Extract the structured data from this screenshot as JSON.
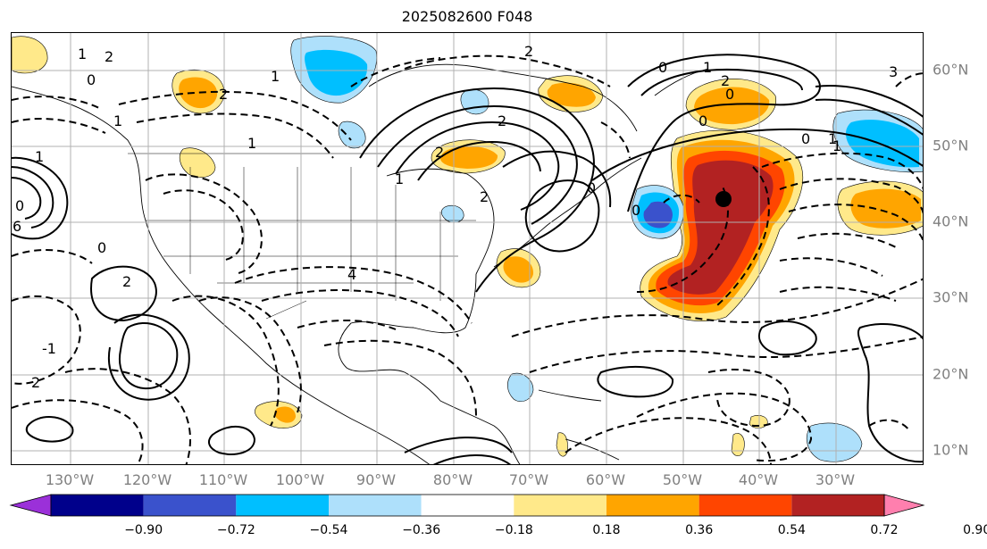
{
  "title": "2025082600 F048",
  "map": {
    "lon_labels": [
      "130°W",
      "120°W",
      "110°W",
      "100°W",
      "90°W",
      "80°W",
      "70°W",
      "60°W",
      "50°W",
      "40°W",
      "30°W"
    ],
    "lat_labels": [
      "60°N",
      "50°N",
      "40°N",
      "30°N",
      "20°N",
      "10°N"
    ],
    "gridlines": true,
    "marker": {
      "type": "filled-circle",
      "color": "#000000",
      "lon": -48,
      "lat": 43
    }
  },
  "colorbar": {
    "ticks": [
      "−0.90",
      "−0.72",
      "−0.54",
      "−0.36",
      "−0.18",
      "0.18",
      "0.36",
      "0.54",
      "0.72",
      "0.90"
    ],
    "bins": [
      {
        "color": "#9b30d9"
      },
      {
        "color": "#00008b"
      },
      {
        "color": "#3a52cc"
      },
      {
        "color": "#00bfff"
      },
      {
        "color": "#aee0fb"
      },
      {
        "color": "#ffffff"
      },
      {
        "color": "#ffe98a"
      },
      {
        "color": "#ffa500"
      },
      {
        "color": "#ff4500"
      },
      {
        "color": "#b22222"
      },
      {
        "color": "#ff7fae"
      }
    ]
  },
  "contour_labels": [
    "1",
    "2",
    "2",
    "0",
    "1",
    "1",
    "0",
    "6",
    "1",
    "2",
    "0",
    "2",
    "1",
    "0",
    "0",
    "1",
    "2",
    "1",
    "0",
    "2",
    "2",
    "-1",
    "2",
    "4",
    "0",
    "3",
    "0",
    "1",
    "1",
    "0",
    "2"
  ]
}
